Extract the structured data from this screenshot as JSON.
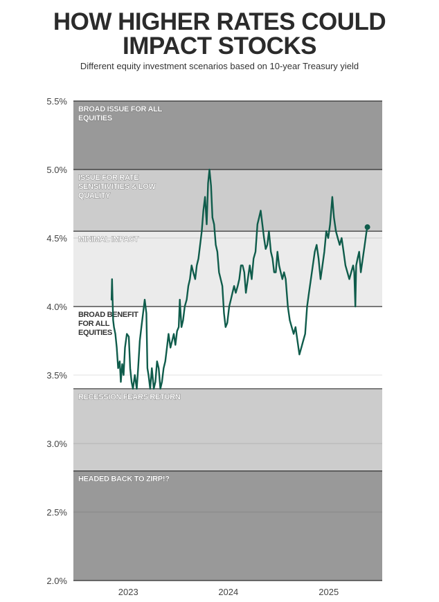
{
  "title": [
    "HOW HIGHER RATES COULD",
    "IMPACT STOCKS"
  ],
  "subtitle": "Different equity investment scenarios based on 10-year Treasury yield",
  "colors": {
    "line": "#0f5c4b",
    "band_dark": "#999999",
    "band_mid": "#cccccc",
    "band_light": "#ebebeb",
    "band_white": "#ffffff",
    "band_border": "#333333",
    "label_on_dark": "#ffffff",
    "label_on_light": "#333333"
  },
  "chart_data": {
    "type": "line",
    "title": "HOW HIGHER RATES COULD IMPACT STOCKS",
    "subtitle": "Different equity investment scenarios based on 10-year Treasury yield",
    "xlabel": "",
    "ylabel": "",
    "ylim": [
      2.0,
      5.5
    ],
    "xlim": [
      "2022-06-15",
      "2025-07-15"
    ],
    "y_ticks": [
      {
        "value": 5.5,
        "label": "5.5%"
      },
      {
        "value": 5.0,
        "label": "5.0%"
      },
      {
        "value": 4.5,
        "label": "4.5%"
      },
      {
        "value": 4.0,
        "label": "4.0%"
      },
      {
        "value": 3.5,
        "label": "3.5%"
      },
      {
        "value": 3.0,
        "label": "3.0%"
      },
      {
        "value": 2.5,
        "label": "2.5%"
      },
      {
        "value": 2.0,
        "label": "2.0%"
      }
    ],
    "x_ticks": [
      {
        "value": "2023-01-01",
        "label": "2023"
      },
      {
        "value": "2024-01-01",
        "label": "2024"
      },
      {
        "value": "2025-01-01",
        "label": "2025"
      }
    ],
    "bands": [
      {
        "from": 5.0,
        "to": 5.5,
        "label": "BROAD ISSUE FOR ALL EQUITIES",
        "lines": [
          "BROAD ISSUE FOR ALL",
          "EQUITIES"
        ],
        "shade": "band_dark",
        "label_color": "label_on_dark"
      },
      {
        "from": 4.55,
        "to": 5.0,
        "label": "ISSUE FOR RATE SENSITIVITIES & LOW QUALITY",
        "lines": [
          "ISSUE FOR RATE",
          "SENSITIVITIES & LOW",
          "QUALITY"
        ],
        "shade": "band_mid",
        "label_color": "label_on_dark"
      },
      {
        "from": 4.0,
        "to": 4.55,
        "label": "MINIMAL IMPACT",
        "lines": [
          "MINIMAL IMPACT"
        ],
        "shade": "band_light",
        "label_color": "label_on_dark"
      },
      {
        "from": 3.4,
        "to": 4.0,
        "label": "BROAD BENEFIT FOR ALL EQUITIES",
        "lines": [
          "BROAD BENEFIT",
          "FOR ALL",
          "EQUITIES"
        ],
        "shade": "band_white",
        "label_color": "label_on_light"
      },
      {
        "from": 2.8,
        "to": 3.4,
        "label": "RECESSION FEARS RETURN",
        "lines": [
          "RECESSION FEARS RETURN"
        ],
        "shade": "band_mid",
        "label_color": "label_on_dark"
      },
      {
        "from": 2.0,
        "to": 2.8,
        "label": "HEADED BACK TO ZIRP!?",
        "lines": [
          "HEADED BACK TO ZIRP!?"
        ],
        "shade": "band_dark",
        "label_color": "label_on_dark"
      }
    ],
    "grid": true,
    "legend": "none",
    "series": [
      {
        "x": [
          "2022-11-01",
          "2022-11-03",
          "2022-11-07",
          "2022-11-10",
          "2022-11-15",
          "2022-11-20",
          "2022-11-25",
          "2022-12-01",
          "2022-12-05",
          "2022-12-10",
          "2022-12-15",
          "2022-12-20",
          "2022-12-27",
          "2023-01-03",
          "2023-01-08",
          "2023-01-13",
          "2023-01-18",
          "2023-01-25",
          "2023-02-01",
          "2023-02-06",
          "2023-02-12",
          "2023-02-18",
          "2023-02-24",
          "2023-03-02",
          "2023-03-08",
          "2023-03-12",
          "2023-03-16",
          "2023-03-22",
          "2023-03-28",
          "2023-04-04",
          "2023-04-10",
          "2023-04-16",
          "2023-04-22",
          "2023-04-28",
          "2023-05-04",
          "2023-05-10",
          "2023-05-16",
          "2023-05-22",
          "2023-05-28",
          "2023-06-04",
          "2023-06-10",
          "2023-06-16",
          "2023-06-22",
          "2023-06-28",
          "2023-07-04",
          "2023-07-08",
          "2023-07-14",
          "2023-07-20",
          "2023-07-26",
          "2023-08-02",
          "2023-08-08",
          "2023-08-14",
          "2023-08-20",
          "2023-08-26",
          "2023-09-02",
          "2023-09-08",
          "2023-09-14",
          "2023-09-20",
          "2023-09-26",
          "2023-10-02",
          "2023-10-08",
          "2023-10-14",
          "2023-10-19",
          "2023-10-24",
          "2023-10-30",
          "2023-11-04",
          "2023-11-10",
          "2023-11-16",
          "2023-11-22",
          "2023-11-28",
          "2023-12-04",
          "2023-12-10",
          "2023-12-16",
          "2023-12-22",
          "2023-12-28",
          "2024-01-04",
          "2024-01-10",
          "2024-01-16",
          "2024-01-22",
          "2024-01-28",
          "2024-02-04",
          "2024-02-10",
          "2024-02-16",
          "2024-02-22",
          "2024-02-28",
          "2024-03-05",
          "2024-03-12",
          "2024-03-19",
          "2024-03-26",
          "2024-04-02",
          "2024-04-09",
          "2024-04-16",
          "2024-04-22",
          "2024-04-28",
          "2024-05-04",
          "2024-05-10",
          "2024-05-16",
          "2024-05-22",
          "2024-05-28",
          "2024-06-04",
          "2024-06-10",
          "2024-06-16",
          "2024-06-22",
          "2024-06-28",
          "2024-07-04",
          "2024-07-10",
          "2024-07-16",
          "2024-07-22",
          "2024-07-28",
          "2024-08-05",
          "2024-08-12",
          "2024-08-19",
          "2024-08-26",
          "2024-09-02",
          "2024-09-09",
          "2024-09-16",
          "2024-09-23",
          "2024-09-30",
          "2024-10-07",
          "2024-10-14",
          "2024-10-21",
          "2024-10-28",
          "2024-11-04",
          "2024-11-11",
          "2024-11-18",
          "2024-11-25",
          "2024-12-02",
          "2024-12-09",
          "2024-12-16",
          "2024-12-23",
          "2024-12-30",
          "2025-01-06",
          "2025-01-10",
          "2025-01-14",
          "2025-01-20",
          "2025-01-27",
          "2025-02-03",
          "2025-02-10",
          "2025-02-17",
          "2025-02-24",
          "2025-03-03",
          "2025-03-10",
          "2025-03-17",
          "2025-03-24",
          "2025-03-31",
          "2025-04-04",
          "2025-04-08",
          "2025-04-11",
          "2025-04-16",
          "2025-04-22",
          "2025-04-28",
          "2025-05-05",
          "2025-05-12",
          "2025-05-19",
          "2025-05-22"
        ],
        "values": [
          4.05,
          4.2,
          3.9,
          3.85,
          3.8,
          3.7,
          3.55,
          3.6,
          3.45,
          3.58,
          3.5,
          3.7,
          3.8,
          3.78,
          3.55,
          3.45,
          3.4,
          3.5,
          3.4,
          3.55,
          3.75,
          3.85,
          3.95,
          4.05,
          3.95,
          3.55,
          3.5,
          3.4,
          3.55,
          3.4,
          3.45,
          3.6,
          3.55,
          3.4,
          3.45,
          3.55,
          3.6,
          3.7,
          3.8,
          3.7,
          3.75,
          3.8,
          3.72,
          3.82,
          3.85,
          4.05,
          3.85,
          3.9,
          4.0,
          4.05,
          4.15,
          4.2,
          4.3,
          4.25,
          4.2,
          4.3,
          4.35,
          4.45,
          4.55,
          4.7,
          4.8,
          4.6,
          4.9,
          5.0,
          4.88,
          4.65,
          4.6,
          4.45,
          4.4,
          4.25,
          4.2,
          4.15,
          3.95,
          3.85,
          3.88,
          4.0,
          4.05,
          4.1,
          4.15,
          4.1,
          4.15,
          4.2,
          4.3,
          4.3,
          4.25,
          4.1,
          4.2,
          4.3,
          4.2,
          4.35,
          4.4,
          4.6,
          4.65,
          4.7,
          4.6,
          4.5,
          4.42,
          4.45,
          4.55,
          4.4,
          4.35,
          4.25,
          4.25,
          4.4,
          4.3,
          4.25,
          4.2,
          4.25,
          4.2,
          4.0,
          3.9,
          3.85,
          3.8,
          3.85,
          3.75,
          3.65,
          3.7,
          3.75,
          3.8,
          4.0,
          4.1,
          4.2,
          4.3,
          4.4,
          4.45,
          4.35,
          4.2,
          4.3,
          4.4,
          4.55,
          4.5,
          4.6,
          4.7,
          4.8,
          4.65,
          4.55,
          4.5,
          4.45,
          4.5,
          4.4,
          4.3,
          4.25,
          4.2,
          4.25,
          4.3,
          4.25,
          4.0,
          4.3,
          4.35,
          4.4,
          4.25,
          4.35,
          4.45,
          4.55,
          4.58
        ],
        "end_marker": true
      }
    ]
  }
}
